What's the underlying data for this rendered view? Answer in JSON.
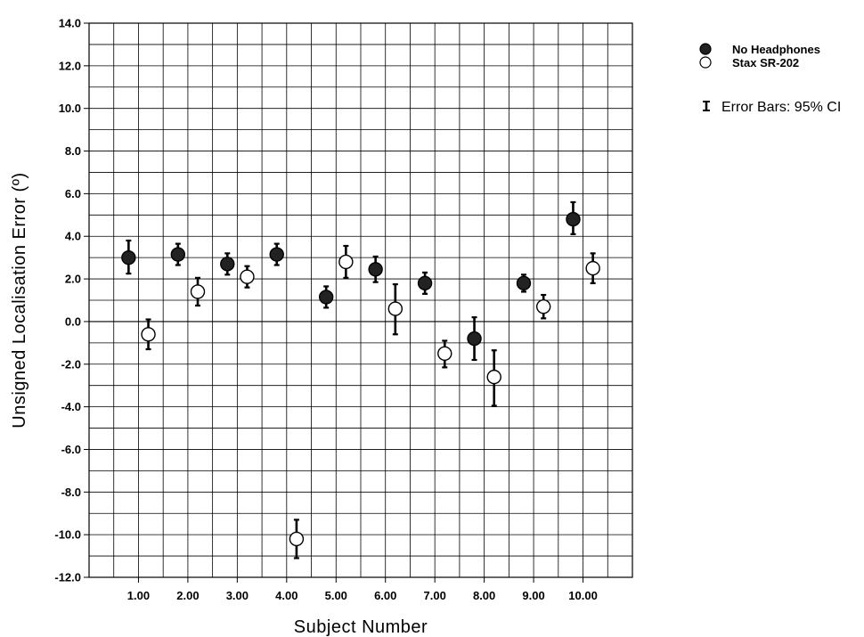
{
  "chart_data": {
    "type": "scatter",
    "title": "",
    "xlabel": "Subject Number",
    "ylabel": "Unsigned Localisation Error (º)",
    "xlim": [
      0,
      11
    ],
    "ylim": [
      -12,
      14
    ],
    "x_ticks": [
      "1.00",
      "2.00",
      "3.00",
      "4.00",
      "5.00",
      "6.00",
      "7.00",
      "8.00",
      "9.00",
      "10.00"
    ],
    "y_ticks": [
      "14.0",
      "12.0",
      "10.0",
      "8.0",
      "6.0",
      "4.0",
      "2.0",
      "0.0",
      "-2.0",
      "-4.0",
      "-6.0",
      "-8.0",
      "-10.0",
      "-12.0"
    ],
    "grid": true,
    "legend_position": "top-right",
    "error_bar_note": "Error Bars: 95% CI",
    "series": [
      {
        "name": "No Headphones",
        "marker": "filled-circle",
        "x": [
          1,
          2,
          3,
          4,
          5,
          6,
          7,
          8,
          9,
          10
        ],
        "y": [
          3.0,
          3.15,
          2.7,
          3.15,
          1.15,
          2.45,
          1.8,
          -0.8,
          1.8,
          4.8
        ],
        "ci_low": [
          2.25,
          2.65,
          2.2,
          2.65,
          0.65,
          1.85,
          1.3,
          -1.8,
          1.4,
          4.1
        ],
        "ci_high": [
          3.8,
          3.65,
          3.2,
          3.65,
          1.65,
          3.05,
          2.3,
          0.2,
          2.2,
          5.6
        ]
      },
      {
        "name": "Stax SR-202",
        "marker": "open-circle",
        "x": [
          1,
          2,
          3,
          4,
          5,
          6,
          7,
          8,
          9,
          10
        ],
        "y": [
          -0.6,
          1.4,
          2.1,
          -10.2,
          2.8,
          0.6,
          -1.5,
          -2.6,
          0.7,
          2.5
        ],
        "ci_low": [
          -1.3,
          0.75,
          1.6,
          -11.1,
          2.05,
          -0.6,
          -2.15,
          -3.95,
          0.15,
          1.8
        ],
        "ci_high": [
          0.1,
          2.05,
          2.6,
          -9.3,
          3.55,
          1.75,
          -0.9,
          -1.35,
          1.25,
          3.2
        ]
      }
    ]
  }
}
